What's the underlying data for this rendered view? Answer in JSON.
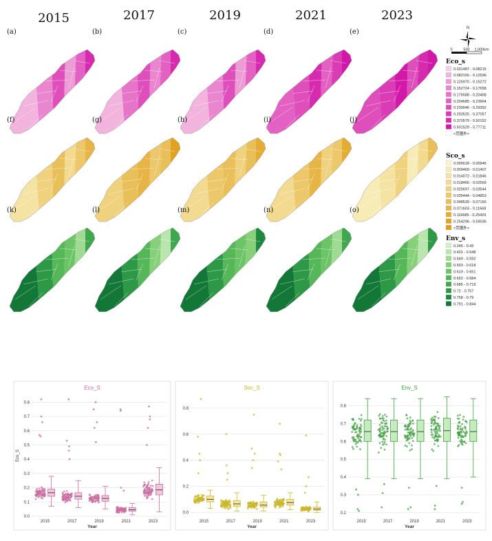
{
  "years": [
    "2015",
    "2017",
    "2019",
    "2021",
    "2023"
  ],
  "panel_labels": [
    [
      "(a)",
      "(b)",
      "(c)",
      "(d)",
      "(e)"
    ],
    [
      "(f)",
      "(g)",
      "(h)",
      "(i)",
      "(j)"
    ],
    [
      "(k)",
      "(l)",
      "(m)",
      "(n)",
      "(o)"
    ]
  ],
  "compass": {
    "north": "N",
    "scale_ticks": [
      "0",
      "500",
      "1,000km"
    ]
  },
  "legends": [
    {
      "title": "Eco_s",
      "items": [
        "0.031487 - 0.08215",
        "0.082156 - 0.12596",
        "0.125970 - 0.15272",
        "0.152724 - 0.17658",
        "0.176588 - 0.20468",
        "0.204685 - 0.23904",
        "0.239046 - 0.29352",
        "0.293525 - 0.37057",
        "0.370579 - 0.50152",
        "0.501529 - 0.77711"
      ],
      "colors": [
        "#f7cfe9",
        "#f2b3dd",
        "#ee9cd6",
        "#ea86cf",
        "#e674c8",
        "#e261c2",
        "#de4fbb",
        "#da3cb5",
        "#d62aaf",
        "#d218a8"
      ],
      "extra": "<范围外>",
      "extra_color": "#ffffff"
    },
    {
      "title": "Sco_s",
      "items": [
        "0.005618 - 0.00946",
        "0.009469 - 0.01407",
        "0.014072 - 0.01846",
        "0.018466 - 0.02569",
        "0.025697 - 0.03544",
        "0.035444 - 0.04853",
        "0.048539 - 0.07160",
        "0.071603 - 0.11668",
        "0.116685 - 0.25429",
        "0.254296 - 0.59036"
      ],
      "colors": [
        "#fbf4c8",
        "#f8ecb6",
        "#f5e3a3",
        "#f2da90",
        "#efd17e",
        "#ecc86b",
        "#e9bf59",
        "#e6b546",
        "#e3ac34",
        "#e0a321"
      ],
      "extra": "<范围外>",
      "extra_color": "#e69a1a"
    },
    {
      "title": "Env_s",
      "items": [
        "0.245 - 0.43",
        "0.431 - 0.548",
        "0.549 - 0.592",
        "0.593 - 0.618",
        "0.619 - 0.651",
        "0.652 - 0.684",
        "0.685 - 0.719",
        "0.72 - 0.757",
        "0.758 - 0.79",
        "0.791 - 0.844"
      ],
      "colors": [
        "#d2f0c8",
        "#b9e6ac",
        "#9fdb92",
        "#86d07a",
        "#6dc466",
        "#55b758",
        "#3fa84e",
        "#2d9846",
        "#1f883f",
        "#137837"
      ]
    }
  ],
  "map_colors": [
    [
      [
        "#f2b3dd",
        "#ea86cf",
        "#de4fbb",
        "#ee9cd6",
        "#e261c2",
        "#d62aaf"
      ],
      [
        "#f2b3dd",
        "#e674c8",
        "#de4fbb",
        "#ea86cf",
        "#e261c2",
        "#d62aaf"
      ],
      [
        "#f2b3dd",
        "#ea86cf",
        "#de4fbb",
        "#ee9cd6",
        "#e261c2",
        "#d62aaf"
      ],
      [
        "#e261c2",
        "#de4fbb",
        "#d62aaf",
        "#e261c2",
        "#da3cb5",
        "#d218a8"
      ],
      [
        "#de4fbb",
        "#da3cb5",
        "#d218a8",
        "#de4fbb",
        "#d62aaf",
        "#d218a8"
      ]
    ],
    [
      [
        "#f5e3a3",
        "#efd17e",
        "#e9bf59",
        "#f2da90",
        "#ecc86b",
        "#e6b546"
      ],
      [
        "#efd17e",
        "#e9bf59",
        "#e6b546",
        "#ecc86b",
        "#e9bf59",
        "#e0a321"
      ],
      [
        "#f2da90",
        "#ecc86b",
        "#e9bf59",
        "#efd17e",
        "#e9bf59",
        "#e3ac34"
      ],
      [
        "#f2da90",
        "#ecc86b",
        "#e6b546",
        "#efd17e",
        "#ecc86b",
        "#e3ac34"
      ],
      [
        "#f8ecb6",
        "#f5e3a3",
        "#efd17e",
        "#f8ecb6",
        "#f2da90",
        "#e9bf59"
      ]
    ],
    [
      [
        "#137837",
        "#2d9846",
        "#55b758",
        "#6dc466",
        "#9fdb92",
        "#3fa84e"
      ],
      [
        "#137837",
        "#2d9846",
        "#55b758",
        "#86d07a",
        "#b9e6ac",
        "#3fa84e"
      ],
      [
        "#137837",
        "#2d9846",
        "#55b758",
        "#6dc466",
        "#86d07a",
        "#1f883f"
      ],
      [
        "#137837",
        "#2d9846",
        "#55b758",
        "#6dc466",
        "#9fdb92",
        "#3fa84e"
      ],
      [
        "#137837",
        "#2d9846",
        "#55b758",
        "#86d07a",
        "#b9e6ac",
        "#2d9846"
      ]
    ]
  ],
  "chart_data": [
    {
      "type": "box",
      "title": "Eco_S",
      "xlabel": "Year",
      "ylabel": "Eco_S",
      "categories": [
        "2015",
        "2017",
        "2019",
        "2021",
        "2023"
      ],
      "ylim": [
        0,
        0.85
      ],
      "yticks": [
        0.0,
        0.1,
        0.2,
        0.3,
        0.4,
        0.5,
        0.6,
        0.7,
        0.8
      ],
      "color": "#c86ca0",
      "box_fill": "#f3c6dc",
      "boxes": [
        {
          "q1": 0.14,
          "median": 0.165,
          "q3": 0.19,
          "lower": 0.07,
          "upper": 0.28
        },
        {
          "q1": 0.12,
          "median": 0.14,
          "q3": 0.165,
          "lower": 0.06,
          "upper": 0.25
        },
        {
          "q1": 0.105,
          "median": 0.125,
          "q3": 0.145,
          "lower": 0.05,
          "upper": 0.21
        },
        {
          "q1": 0.035,
          "median": 0.045,
          "q3": 0.06,
          "lower": 0.01,
          "upper": 0.09
        },
        {
          "q1": 0.15,
          "median": 0.185,
          "q3": 0.225,
          "lower": 0.03,
          "upper": 0.34
        }
      ],
      "outliers": [
        [
          0.82,
          0.7,
          0.57,
          0.56,
          0.66
        ],
        [
          0.82,
          0.53,
          0.49,
          0.46,
          0.4
        ],
        [
          0.8,
          0.75,
          0.66,
          0.62,
          0.52
        ],
        [
          0.75,
          0.74,
          0.2,
          0.18
        ],
        [
          0.77,
          0.7,
          0.68,
          0.62,
          0.5
        ]
      ]
    },
    {
      "type": "box",
      "title": "Soc_S",
      "xlabel": "Year",
      "ylabel": "",
      "categories": [
        "2015",
        "2017",
        "2019",
        "2021",
        "2023"
      ],
      "ylim": [
        -0.03,
        0.9
      ],
      "yticks": [
        0.0,
        0.2,
        0.4,
        0.6,
        0.8
      ],
      "color": "#c9b62a",
      "box_fill": "#f3e7a1",
      "boxes": [
        {
          "q1": 0.08,
          "median": 0.1,
          "q3": 0.125,
          "lower": 0.03,
          "upper": 0.17
        },
        {
          "q1": 0.045,
          "median": 0.065,
          "q3": 0.09,
          "lower": 0.01,
          "upper": 0.15
        },
        {
          "q1": 0.04,
          "median": 0.055,
          "q3": 0.08,
          "lower": 0.01,
          "upper": 0.13
        },
        {
          "q1": 0.055,
          "median": 0.075,
          "q3": 0.1,
          "lower": 0.02,
          "upper": 0.15
        },
        {
          "q1": 0.015,
          "median": 0.025,
          "q3": 0.04,
          "lower": 0.0,
          "upper": 0.08
        }
      ],
      "outliers": [
        [
          0.87,
          0.58,
          0.45,
          0.4,
          0.3
        ],
        [
          0.6,
          0.36,
          0.3,
          0.25
        ],
        [
          0.75,
          0.49,
          0.45,
          0.4,
          0.34
        ],
        [
          0.68,
          0.45,
          0.44,
          0.39,
          0.33
        ],
        [
          0.59,
          0.27,
          0.2,
          0.15
        ]
      ]
    },
    {
      "type": "box",
      "title": "Env_S",
      "xlabel": "Year",
      "ylabel": "",
      "categories": [
        "2015",
        "2017",
        "2019",
        "2021",
        "2023"
      ],
      "ylim": [
        0.18,
        0.86
      ],
      "yticks": [
        0.2,
        0.3,
        0.4,
        0.5,
        0.6,
        0.7,
        0.8
      ],
      "color": "#3f9e3f",
      "box_fill": "#c6ebbf",
      "boxes": [
        {
          "q1": 0.6,
          "median": 0.655,
          "q3": 0.72,
          "lower": 0.39,
          "upper": 0.84
        },
        {
          "q1": 0.6,
          "median": 0.655,
          "q3": 0.72,
          "lower": 0.39,
          "upper": 0.84
        },
        {
          "q1": 0.6,
          "median": 0.655,
          "q3": 0.72,
          "lower": 0.39,
          "upper": 0.84
        },
        {
          "q1": 0.6,
          "median": 0.66,
          "q3": 0.73,
          "lower": 0.39,
          "upper": 0.85
        },
        {
          "q1": 0.6,
          "median": 0.655,
          "q3": 0.72,
          "lower": 0.4,
          "upper": 0.84
        }
      ],
      "outliers": [
        [
          0.22,
          0.21,
          0.33,
          0.3
        ],
        [
          0.23,
          0.31,
          0.36
        ],
        [
          0.23,
          0.22,
          0.34
        ],
        [
          0.22,
          0.24,
          0.35
        ],
        [
          0.25,
          0.26,
          0.34
        ]
      ]
    }
  ]
}
